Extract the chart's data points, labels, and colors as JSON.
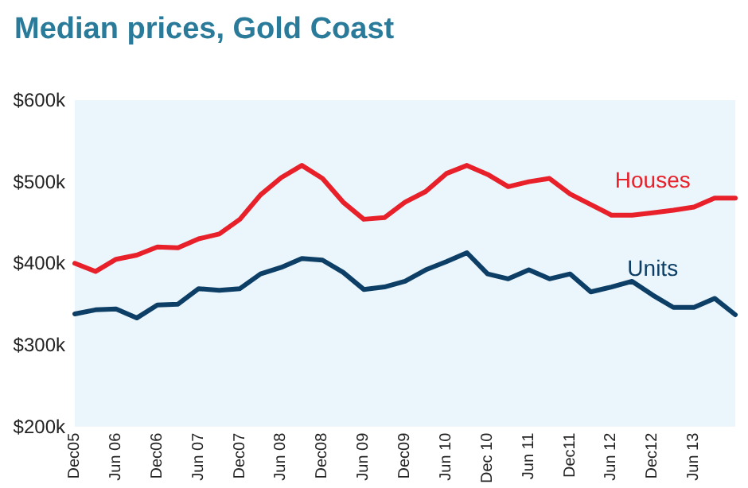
{
  "chart_data": {
    "type": "line",
    "title": "Median prices, Gold Coast",
    "categories": [
      "Dec05",
      null,
      "Jun 06",
      null,
      "Dec06",
      null,
      "Jun 07",
      null,
      "Dec07",
      null,
      "Jun 08",
      null,
      "Dec08",
      null,
      "Jun 09",
      null,
      "Dec09",
      null,
      "Jun 10",
      null,
      "Dec 10",
      null,
      "Jun 11",
      null,
      "Dec11",
      null,
      "Jun 12",
      null,
      "Dec12",
      null,
      "Jun 13",
      null,
      null
    ],
    "series": [
      {
        "name": "Houses",
        "color": "#e8202a",
        "values": [
          400,
          390,
          405,
          410,
          420,
          419,
          430,
          436,
          454,
          484,
          505,
          520,
          504,
          475,
          454,
          456,
          475,
          488,
          510,
          520,
          509,
          494,
          500,
          504,
          485,
          472,
          459,
          459,
          462,
          465,
          469,
          480,
          480
        ]
      },
      {
        "name": "Units",
        "color": "#0d3f66",
        "values": [
          338,
          343,
          344,
          333,
          349,
          350,
          369,
          367,
          369,
          387,
          395,
          406,
          404,
          389,
          368,
          371,
          378,
          392,
          402,
          413,
          387,
          381,
          392,
          381,
          387,
          365,
          371,
          378,
          361,
          346,
          346,
          357,
          337
        ]
      }
    ],
    "ylim": [
      200,
      600
    ],
    "yticks": [
      {
        "value": 200,
        "label": "$200k"
      },
      {
        "value": 300,
        "label": "$300k"
      },
      {
        "value": 400,
        "label": "$400k"
      },
      {
        "value": 500,
        "label": "$500k"
      },
      {
        "value": 600,
        "label": "$600k"
      }
    ],
    "grid": false,
    "legend": false,
    "marker": "none",
    "line_style": "solid"
  }
}
